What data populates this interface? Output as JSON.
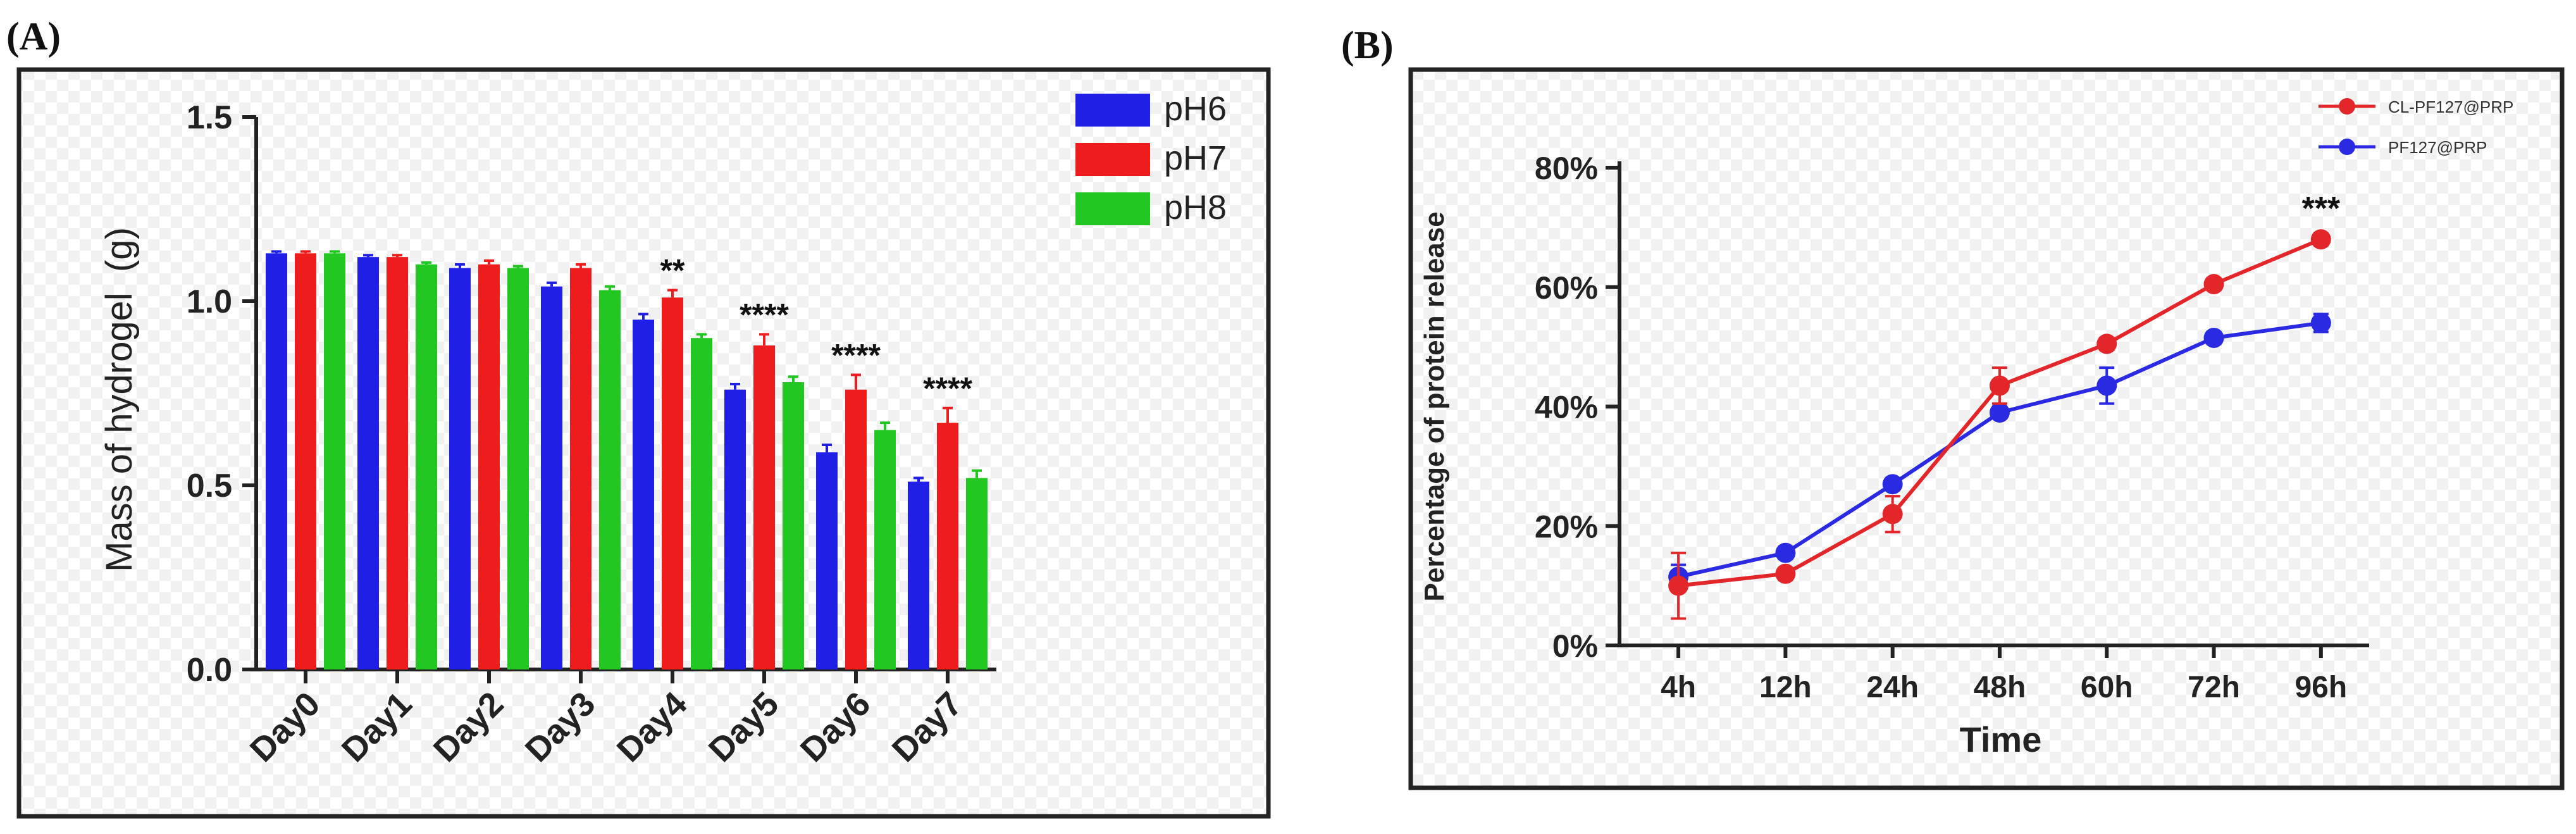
{
  "panels": {
    "a": {
      "letter": "(A)"
    },
    "b": {
      "letter": "(B)"
    }
  },
  "chart_data": [
    {
      "id": "A",
      "type": "bar",
      "title": "",
      "xlabel": "",
      "ylabel": "Mass of hydrogel  (g)",
      "ylim": [
        0,
        1.5
      ],
      "yticks": [
        "0.0",
        "0.5",
        "1.0",
        "1.5"
      ],
      "categories": [
        "Day0",
        "Day1",
        "Day2",
        "Day3",
        "Day4",
        "Day5",
        "Day6",
        "Day7"
      ],
      "series": [
        {
          "name": "pH6",
          "color": "#1f1fe6",
          "values": [
            1.13,
            1.12,
            1.09,
            1.04,
            0.95,
            0.76,
            0.59,
            0.51
          ],
          "errors": [
            0.005,
            0.005,
            0.01,
            0.01,
            0.015,
            0.015,
            0.02,
            0.01
          ]
        },
        {
          "name": "pH7",
          "color": "#ee1c1c",
          "values": [
            1.13,
            1.12,
            1.1,
            1.09,
            1.01,
            0.88,
            0.76,
            0.67
          ],
          "errors": [
            0.005,
            0.005,
            0.01,
            0.01,
            0.02,
            0.03,
            0.04,
            0.04
          ]
        },
        {
          "name": "pH8",
          "color": "#22c722",
          "values": [
            1.13,
            1.1,
            1.09,
            1.03,
            0.9,
            0.78,
            0.65,
            0.52
          ],
          "errors": [
            0.005,
            0.005,
            0.005,
            0.01,
            0.01,
            0.015,
            0.02,
            0.02
          ]
        }
      ],
      "annotations": [
        {
          "category": "Day4",
          "text": "**"
        },
        {
          "category": "Day5",
          "text": "****"
        },
        {
          "category": "Day6",
          "text": "****"
        },
        {
          "category": "Day7",
          "text": "****"
        }
      ],
      "legend_position": "top-right"
    },
    {
      "id": "B",
      "type": "line",
      "title": "",
      "xlabel": "Time",
      "ylabel": "Percentage of protein release",
      "ylim": [
        0,
        80
      ],
      "yticks": [
        "0%",
        "20%",
        "40%",
        "60%",
        "80%"
      ],
      "categories": [
        "4h",
        "12h",
        "24h",
        "48h",
        "60h",
        "72h",
        "96h"
      ],
      "series": [
        {
          "name": "CL-PF127@PRP",
          "color": "#e3262a",
          "values": [
            10,
            12,
            22,
            43.5,
            50.5,
            60.5,
            68
          ],
          "errors": [
            5.5,
            1,
            3,
            3,
            1,
            1,
            1
          ]
        },
        {
          "name": "PF127@PRP",
          "color": "#2a2ae3",
          "values": [
            11.5,
            15.5,
            27,
            39,
            43.5,
            51.5,
            54
          ],
          "errors": [
            2,
            1,
            1,
            1,
            3,
            1,
            1.5
          ]
        }
      ],
      "annotations": [
        {
          "category": "96h",
          "text": "***"
        }
      ],
      "legend_position": "top-right"
    }
  ]
}
